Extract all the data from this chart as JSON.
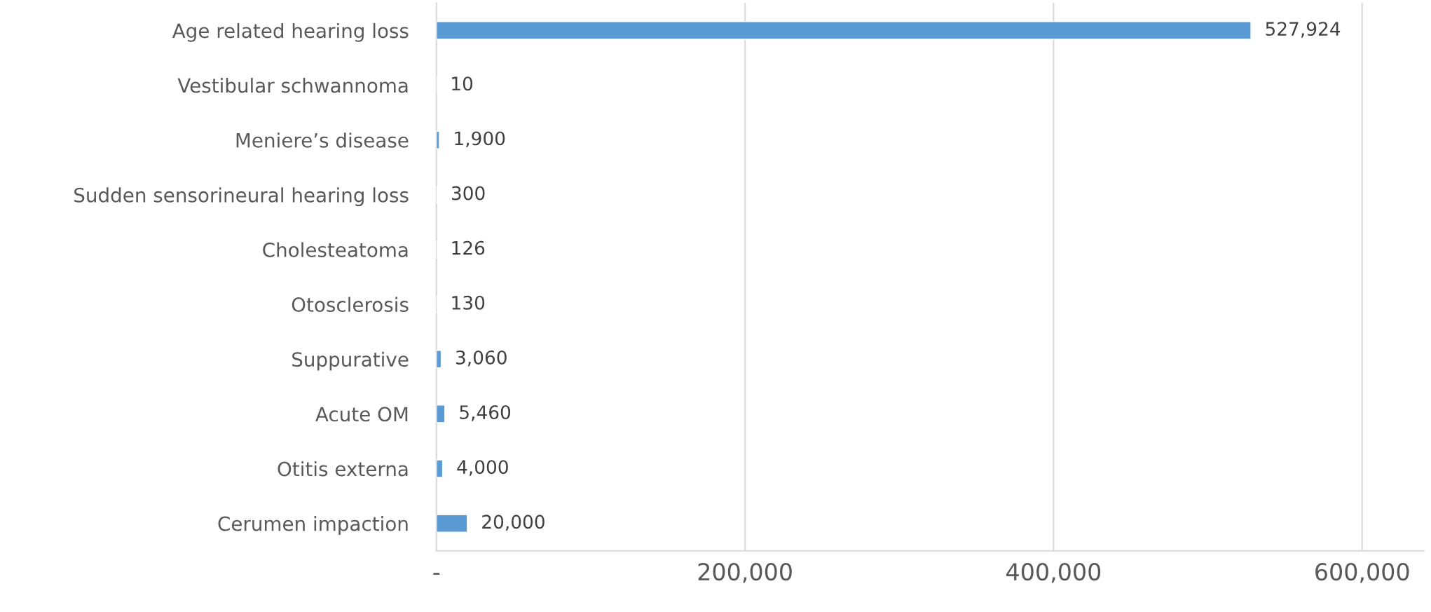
{
  "chart_data": {
    "type": "bar",
    "orientation": "horizontal",
    "categories": [
      "Age related hearing loss",
      "Vestibular schwannoma",
      "Meniere’s disease",
      "Sudden sensorineural hearing loss",
      "Cholesteatoma",
      "Otosclerosis",
      "Suppurative",
      "Acute OM",
      "Otitis externa",
      "Cerumen impaction"
    ],
    "values": [
      527924,
      10,
      1900,
      300,
      126,
      130,
      3060,
      5460,
      4000,
      20000
    ],
    "value_labels": [
      "527,924",
      "10",
      "1,900",
      "300",
      "126",
      "130",
      "3,060",
      "5,460",
      "4,000",
      "20,000"
    ],
    "color": "#5b9bd5",
    "xlim": [
      0,
      640000
    ],
    "xticks": [
      {
        "value": 0,
        "label": "-"
      },
      {
        "value": 200000,
        "label": "200,000"
      },
      {
        "value": 400000,
        "label": "400,000"
      },
      {
        "value": 600000,
        "label": "600,000"
      }
    ],
    "grid": "x"
  }
}
